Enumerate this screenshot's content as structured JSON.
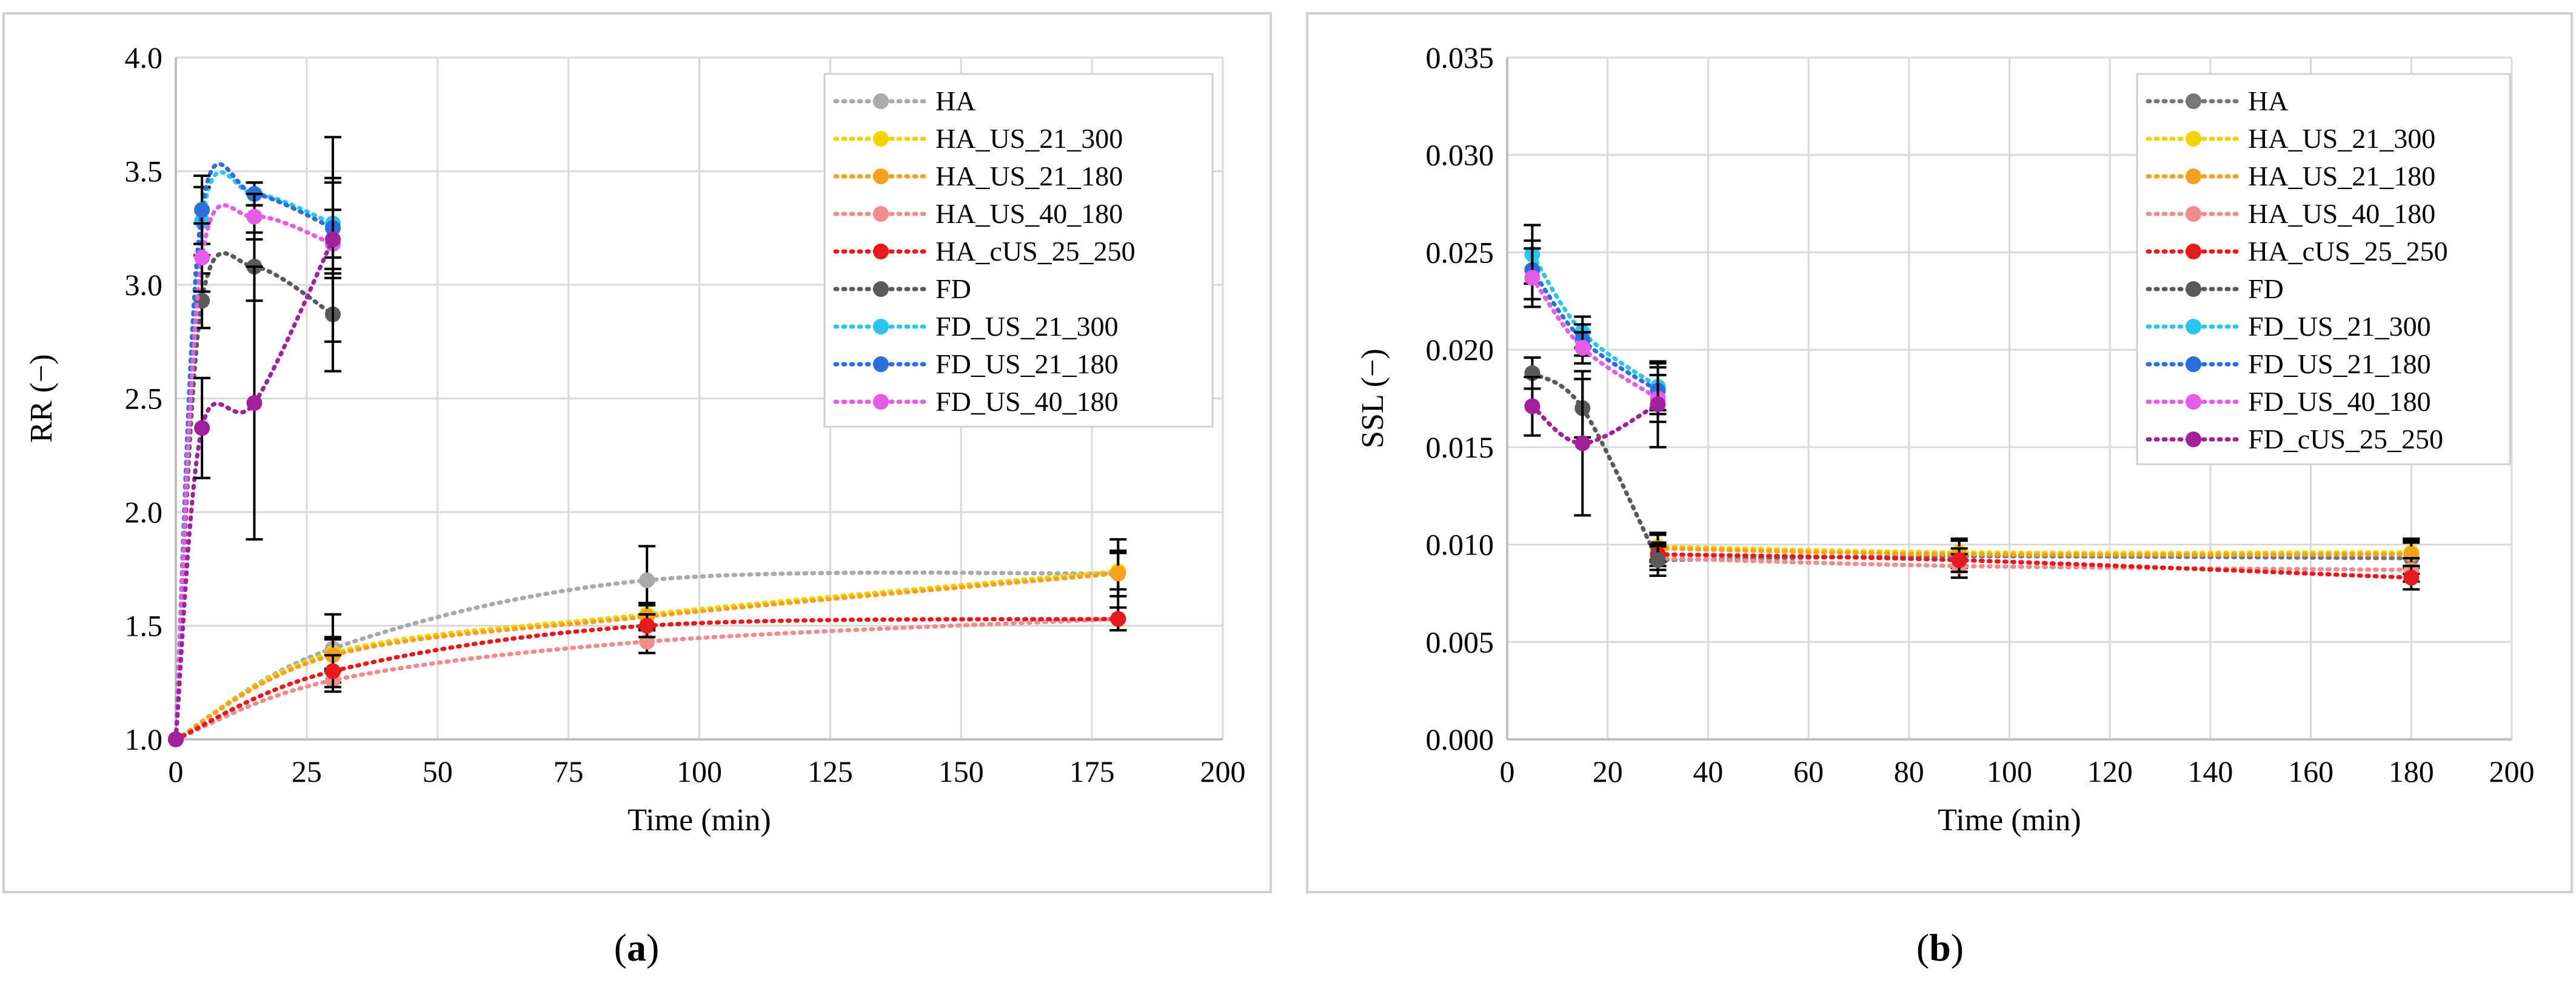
{
  "captions": {
    "a": {
      "open": "(",
      "letter": "a",
      "close": ")"
    },
    "b": {
      "open": "(",
      "letter": "b",
      "close": ")"
    }
  },
  "chart_data": [
    {
      "type": "line",
      "panel": "a",
      "xlabel": "Time (min)",
      "ylabel": "RR (−)",
      "xlim": [
        0,
        200
      ],
      "ylim": [
        1.0,
        4.0
      ],
      "xticks": [
        0,
        25,
        50,
        75,
        100,
        125,
        150,
        175,
        200
      ],
      "yticks": [
        1.0,
        1.5,
        2.0,
        2.5,
        3.0,
        3.5,
        4.0
      ],
      "ytick_labels": [
        "1.0",
        "1.5",
        "2.0",
        "2.5",
        "3.0",
        "3.5",
        "4.0"
      ],
      "xtick_labels": [
        "0",
        "25",
        "50",
        "75",
        "100",
        "125",
        "150",
        "175",
        "200"
      ],
      "grid": true,
      "legend_position": "top-right",
      "series": [
        {
          "name": "HA",
          "color": "#aaaaaa",
          "points": [
            [
              0,
              1.0
            ],
            [
              30,
              1.4
            ],
            [
              90,
              1.7
            ],
            [
              180,
              1.73
            ]
          ],
          "err": [
            0,
            0.15,
            0.15,
            0.15
          ]
        },
        {
          "name": "HA_US_21_300",
          "color": "#f2d300",
          "points": [
            [
              0,
              1.0
            ],
            [
              30,
              1.38
            ],
            [
              90,
              1.55
            ],
            [
              180,
              1.74
            ]
          ],
          "err": [
            0,
            0.07,
            0.05,
            0.08
          ]
        },
        {
          "name": "HA_US_21_180",
          "color": "#f4a11e",
          "points": [
            [
              0,
              1.0
            ],
            [
              30,
              1.37
            ],
            [
              90,
              1.54
            ],
            [
              180,
              1.73
            ]
          ],
          "err": [
            0,
            0.07,
            0.05,
            0.1
          ]
        },
        {
          "name": "HA_US_40_180",
          "color": "#f08c8c",
          "points": [
            [
              0,
              1.0
            ],
            [
              30,
              1.26
            ],
            [
              90,
              1.43
            ],
            [
              180,
              1.53
            ]
          ],
          "err": [
            0,
            0.05,
            0.05,
            0.05
          ]
        },
        {
          "name": "HA_cUS_25_250",
          "color": "#e41a1c",
          "points": [
            [
              0,
              1.0
            ],
            [
              30,
              1.3
            ],
            [
              90,
              1.5
            ],
            [
              180,
              1.53
            ]
          ],
          "err": [
            0,
            0.07,
            0.05,
            0.05
          ]
        },
        {
          "name": "FD",
          "color": "#5a5a5a",
          "points": [
            [
              0,
              1.0
            ],
            [
              5,
              2.93
            ],
            [
              15,
              3.08
            ],
            [
              30,
              2.87
            ]
          ],
          "err": [
            0,
            0.12,
            0.15,
            0.25
          ]
        },
        {
          "name": "FD_US_21_300",
          "color": "#2ec4f0",
          "points": [
            [
              0,
              1.0
            ],
            [
              5,
              3.28
            ],
            [
              15,
              3.4
            ],
            [
              30,
              3.27
            ]
          ],
          "err": [
            0,
            0.15,
            0.05,
            0.2
          ]
        },
        {
          "name": "FD_US_21_180",
          "color": "#2a6fdb",
          "points": [
            [
              0,
              1.0
            ],
            [
              5,
              3.33
            ],
            [
              15,
              3.4
            ],
            [
              30,
              3.25
            ]
          ],
          "err": [
            0,
            0.15,
            0.05,
            0.2
          ]
        },
        {
          "name": "FD_US_40_180",
          "color": "#e55ce5",
          "points": [
            [
              0,
              1.0
            ],
            [
              5,
              3.12
            ],
            [
              15,
              3.3
            ],
            [
              30,
              3.18
            ]
          ],
          "err": [
            0,
            0.15,
            0.1,
            0.15
          ]
        },
        {
          "name": "FD_cUS_25_250",
          "color": "#a0219b",
          "points": [
            [
              0,
              1.0
            ],
            [
              5,
              2.37
            ],
            [
              15,
              2.48
            ],
            [
              30,
              3.2
            ]
          ],
          "err": [
            0,
            0.22,
            0.6,
            0.45
          ],
          "in_legend": false
        }
      ]
    },
    {
      "type": "line",
      "panel": "b",
      "xlabel": "Time (min)",
      "ylabel": "SSL (−)",
      "xlim": [
        0,
        200
      ],
      "ylim": [
        0.0,
        0.035
      ],
      "xticks": [
        0,
        20,
        40,
        60,
        80,
        100,
        120,
        140,
        160,
        180,
        200
      ],
      "yticks": [
        0.0,
        0.005,
        0.01,
        0.015,
        0.02,
        0.025,
        0.03,
        0.035
      ],
      "ytick_labels": [
        "0.000",
        "0.005",
        "0.010",
        "0.015",
        "0.020",
        "0.025",
        "0.030",
        "0.035"
      ],
      "xtick_labels": [
        "0",
        "20",
        "40",
        "60",
        "80",
        "100",
        "120",
        "140",
        "160",
        "180",
        "200"
      ],
      "grid": true,
      "legend_position": "top-right",
      "series": [
        {
          "name": "HA",
          "color": "#777777",
          "points": [
            [
              30,
              0.0092
            ],
            [
              90,
              0.0094
            ],
            [
              180,
              0.0093
            ]
          ],
          "err": [
            0.0008,
            0.0008,
            0.0008
          ]
        },
        {
          "name": "HA_US_21_300",
          "color": "#f2d300",
          "points": [
            [
              30,
              0.0099
            ],
            [
              90,
              0.0096
            ],
            [
              180,
              0.0096
            ]
          ],
          "err": [
            0.0007,
            0.0007,
            0.0007
          ]
        },
        {
          "name": "HA_US_21_180",
          "color": "#f4a11e",
          "points": [
            [
              30,
              0.0098
            ],
            [
              90,
              0.0095
            ],
            [
              180,
              0.0095
            ]
          ],
          "err": [
            0.0007,
            0.0007,
            0.0007
          ]
        },
        {
          "name": "HA_US_40_180",
          "color": "#f08c8c",
          "points": [
            [
              30,
              0.0093
            ],
            [
              90,
              0.0089
            ],
            [
              180,
              0.0087
            ]
          ],
          "err": [
            0.0006,
            0.0006,
            0.0006
          ]
        },
        {
          "name": "HA_cUS_25_250",
          "color": "#e41a1c",
          "points": [
            [
              30,
              0.0095
            ],
            [
              90,
              0.0092
            ],
            [
              180,
              0.0083
            ]
          ],
          "err": [
            0.0006,
            0.0006,
            0.0006
          ]
        },
        {
          "name": "FD",
          "color": "#5a5a5a",
          "points": [
            [
              5,
              0.0188
            ],
            [
              15,
              0.017
            ],
            [
              30,
              0.0092
            ]
          ],
          "err": [
            0.0008,
            0.0015,
            0.0008
          ]
        },
        {
          "name": "FD_US_21_300",
          "color": "#2ec4f0",
          "points": [
            [
              5,
              0.0249
            ],
            [
              15,
              0.0209
            ],
            [
              30,
              0.0181
            ]
          ],
          "err": [
            0.0015,
            0.0008,
            0.0012
          ]
        },
        {
          "name": "FD_US_21_180",
          "color": "#2a6fdb",
          "points": [
            [
              5,
              0.0241
            ],
            [
              15,
              0.0205
            ],
            [
              30,
              0.0179
            ]
          ],
          "err": [
            0.0015,
            0.0008,
            0.0012
          ]
        },
        {
          "name": "FD_US_40_180",
          "color": "#e55ce5",
          "points": [
            [
              5,
              0.0237
            ],
            [
              15,
              0.0201
            ],
            [
              30,
              0.0175
            ]
          ],
          "err": [
            0.0015,
            0.0008,
            0.0012
          ]
        },
        {
          "name": "FD_cUS_25_250",
          "color": "#a0219b",
          "points": [
            [
              5,
              0.0171
            ],
            [
              15,
              0.0152
            ],
            [
              30,
              0.0172
            ]
          ],
          "err": [
            0.0015,
            0.0037,
            0.0022
          ]
        }
      ]
    }
  ]
}
